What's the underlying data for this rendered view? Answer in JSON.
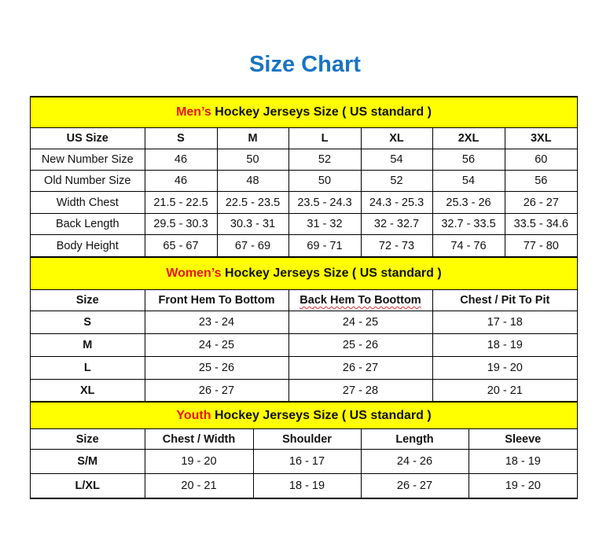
{
  "title": "Size Chart",
  "colors": {
    "title": "#1874c4",
    "section_bg": "#ffff00",
    "highlight": "#e8151b"
  },
  "men": {
    "highlight": "Men’s",
    "heading": " Hockey Jerseys Size ( US standard )",
    "headers": [
      "US Size",
      "S",
      "M",
      "L",
      "XL",
      "2XL",
      "3XL"
    ],
    "rows": [
      [
        "New Number Size",
        "46",
        "50",
        "52",
        "54",
        "56",
        "60"
      ],
      [
        "Old Number Size",
        "46",
        "48",
        "50",
        "52",
        "54",
        "56"
      ],
      [
        "Width Chest",
        "21.5 - 22.5",
        "22.5 - 23.5",
        "23.5 - 24.3",
        "24.3 - 25.3",
        "25.3 - 26",
        "26 - 27"
      ],
      [
        "Back Length",
        "29.5 - 30.3",
        "30.3 - 31",
        "31 - 32",
        "32 - 32.7",
        "32.7 - 33.5",
        "33.5 - 34.6"
      ],
      [
        "Body Height",
        "65 - 67",
        "67 - 69",
        "69 - 71",
        "72 - 73",
        "74 - 76",
        "77 - 80"
      ]
    ]
  },
  "women": {
    "highlight": "Women’s",
    "heading": " Hockey Jerseys Size ( US standard )",
    "headers": [
      "Size",
      "Front Hem To Bottom",
      "Back Hem To Boottom",
      "Chest / Pit To Pit"
    ],
    "rows": [
      [
        "S",
        "23 - 24",
        "24 - 25",
        "17 - 18"
      ],
      [
        "M",
        "24 - 25",
        "25 - 26",
        "18 - 19"
      ],
      [
        "L",
        "25 - 26",
        "26 - 27",
        "19 - 20"
      ],
      [
        "XL",
        "26 - 27",
        "27 - 28",
        "20 - 21"
      ]
    ]
  },
  "youth": {
    "highlight": "Youth",
    "heading": " Hockey Jerseys Size ( US standard )",
    "headers": [
      "Size",
      "Chest / Width",
      "Shoulder",
      "Length",
      "Sleeve"
    ],
    "rows": [
      [
        "S/M",
        "19 - 20",
        "16 - 17",
        "24 - 26",
        "18 - 19"
      ],
      [
        "L/XL",
        "20 - 21",
        "18 - 19",
        "26 - 27",
        "19 - 20"
      ]
    ]
  }
}
